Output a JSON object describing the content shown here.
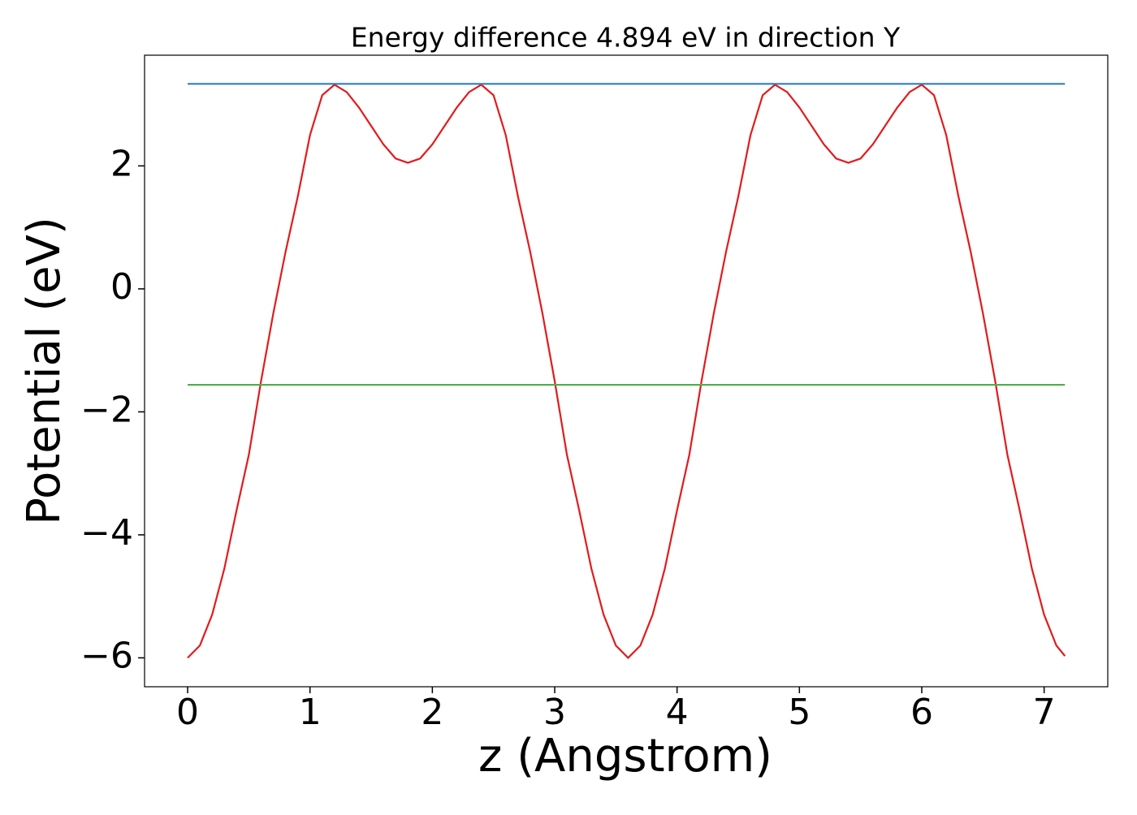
{
  "chart_data": {
    "type": "line",
    "title": "Energy difference 4.894 eV in direction Y",
    "x_label": "z (Angstrom)",
    "y_label": "Potential (eV)",
    "xlim": [
      -0.352,
      7.52
    ],
    "ylim": [
      -6.47,
      3.8
    ],
    "xticks": [
      0,
      1,
      2,
      3,
      4,
      5,
      6,
      7
    ],
    "yticks": [
      {
        "value": -6,
        "label": "−6"
      },
      {
        "value": -4,
        "label": "−4"
      },
      {
        "value": -2,
        "label": "−2"
      },
      0,
      2
    ],
    "series": [
      {
        "color": "#e31a1c",
        "x": [
          0,
          0.1,
          0.2,
          0.3,
          0.4,
          0.5,
          0.6,
          0.7,
          0.8,
          0.9,
          1.0,
          1.1,
          1.2,
          1.3,
          1.4,
          1.5,
          1.6,
          1.7,
          1.8,
          1.9,
          2.0,
          2.1,
          2.2,
          2.3,
          2.4,
          2.5,
          2.6,
          2.7,
          2.8,
          2.9,
          3.0,
          3.1,
          3.2,
          3.3,
          3.4,
          3.5,
          3.6,
          3.7,
          3.8,
          3.9,
          4.0,
          4.1,
          4.2,
          4.3,
          4.4,
          4.5,
          4.6,
          4.7,
          4.8,
          4.9,
          5.0,
          5.1,
          5.2,
          5.3,
          5.4,
          5.5,
          5.6,
          5.7,
          5.8,
          5.9,
          6.0,
          6.1,
          6.2,
          6.3,
          6.4,
          6.5,
          6.6,
          6.7,
          6.8,
          6.9,
          7.0,
          7.1,
          7.17
        ],
        "values": [
          -6,
          -5.8,
          -5.3,
          -4.55,
          -3.6,
          -2.7,
          -1.5,
          -0.4,
          0.6,
          1.5,
          2.5,
          3.15,
          3.32,
          3.2,
          2.95,
          2.65,
          2.35,
          2.12,
          2.05,
          2.12,
          2.35,
          2.65,
          2.95,
          3.2,
          3.32,
          3.15,
          2.5,
          1.5,
          0.6,
          -0.4,
          -1.5,
          -2.7,
          -3.6,
          -4.55,
          -5.3,
          -5.8,
          -6,
          -5.8,
          -5.3,
          -4.55,
          -3.6,
          -2.7,
          -1.5,
          -0.4,
          0.6,
          1.5,
          2.5,
          3.15,
          3.32,
          3.2,
          2.95,
          2.65,
          2.35,
          2.12,
          2.05,
          2.12,
          2.35,
          2.65,
          2.95,
          3.2,
          3.32,
          3.15,
          2.5,
          1.5,
          0.6,
          -0.4,
          -1.5,
          -2.7,
          -3.6,
          -4.55,
          -5.3,
          -5.8,
          -5.97
        ]
      },
      {
        "color": "#2f7ebc",
        "x": [
          0,
          7.17
        ],
        "values": [
          3.334,
          3.334
        ]
      },
      {
        "color": "#4daf4a",
        "x": [
          0,
          7.17
        ],
        "values": [
          -1.56,
          -1.56
        ]
      }
    ]
  }
}
